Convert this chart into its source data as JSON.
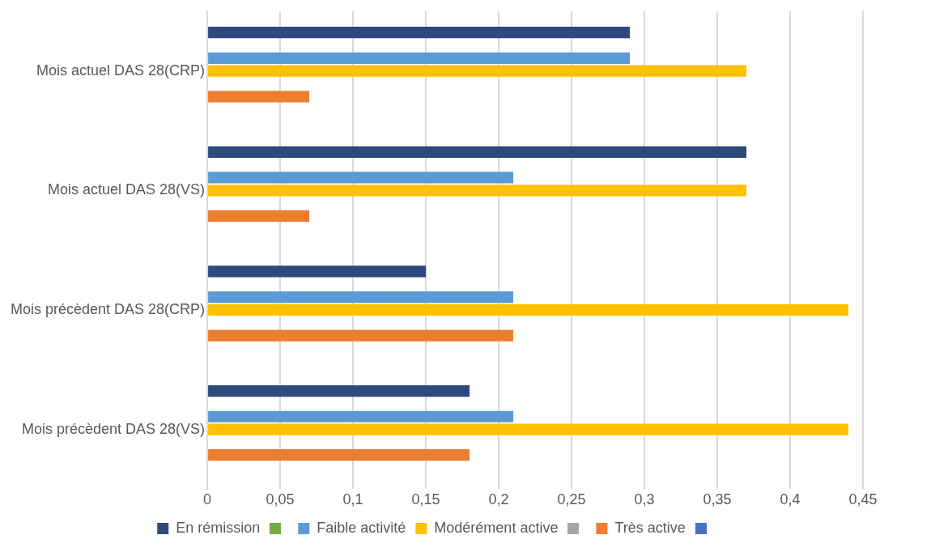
{
  "chart_data": {
    "type": "bar",
    "orientation": "horizontal",
    "categories": [
      "Mois actuel DAS 28(CRP)",
      "Mois actuel DAS 28(VS)",
      "Mois précèdent DAS 28(CRP)",
      "Mois précèdent DAS 28(VS)"
    ],
    "series": [
      {
        "name": "En rémission",
        "color": "#2e4a7d",
        "values": [
          0.29,
          0.37,
          0.15,
          0.18
        ]
      },
      {
        "color": "#70ad47",
        "values": [
          0,
          0,
          0,
          0
        ]
      },
      {
        "name": "Faible activité",
        "color": "#5b9bd5",
        "values": [
          0.29,
          0.21,
          0.21,
          0.21
        ]
      },
      {
        "name": "Modérément active",
        "color": "#ffc000",
        "values": [
          0.37,
          0.37,
          0.44,
          0.44
        ]
      },
      {
        "color": "#a5a5a5",
        "values": [
          0,
          0,
          0,
          0
        ]
      },
      {
        "name": "Très active",
        "color": "#ed7d31",
        "values": [
          0.07,
          0.07,
          0.21,
          0.18
        ]
      },
      {
        "color": "#4472c4",
        "values": [
          0,
          0,
          0,
          0
        ]
      }
    ],
    "xlim": [
      0,
      0.45
    ],
    "xticks": [
      {
        "value": 0,
        "label": "0"
      },
      {
        "value": 0.05,
        "label": "0,05"
      },
      {
        "value": 0.1,
        "label": "0,1"
      },
      {
        "value": 0.15,
        "label": "0,15"
      },
      {
        "value": 0.2,
        "label": "0,2"
      },
      {
        "value": 0.25,
        "label": "0,25"
      },
      {
        "value": 0.3,
        "label": "0,3"
      },
      {
        "value": 0.35,
        "label": "0,35"
      },
      {
        "value": 0.4,
        "label": "0,4"
      },
      {
        "value": 0.45,
        "label": "0,45"
      }
    ],
    "grid": "x",
    "legend": "bottom"
  }
}
